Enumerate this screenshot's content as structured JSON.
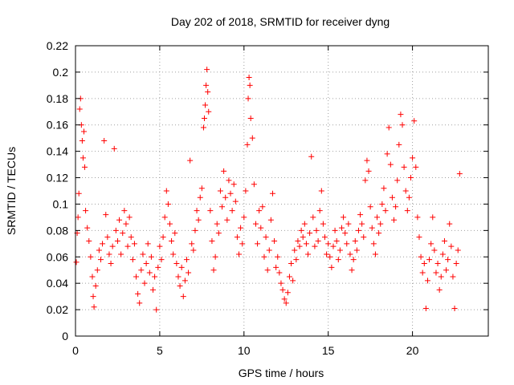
{
  "chart_data": {
    "type": "scatter",
    "title": "Day 202 of 2018, SRMTID for receiver dyng",
    "xlabel": "GPS time / hours",
    "ylabel": "SRMTID / TECUs",
    "xlim": [
      0,
      24.5
    ],
    "ylim": [
      0,
      0.22
    ],
    "xticks": [
      0,
      5,
      10,
      15,
      20
    ],
    "xtick_labels": [
      "0",
      "5",
      "10",
      "15",
      "20"
    ],
    "yticks": [
      0,
      0.02,
      0.04,
      0.06,
      0.08,
      0.1,
      0.12,
      0.14,
      0.16,
      0.18,
      0.2,
      0.22
    ],
    "ytick_labels": [
      "0",
      "0.02",
      "0.04",
      "0.06",
      "0.08",
      "0.1",
      "0.12",
      "0.14",
      "0.16",
      "0.18",
      "0.2",
      "0.22"
    ],
    "grid": true,
    "marker": "+",
    "color": "#ff0000",
    "series": [
      {
        "name": "SRMTID",
        "points": [
          [
            0.05,
            0.056
          ],
          [
            0.1,
            0.078
          ],
          [
            0.15,
            0.09
          ],
          [
            0.2,
            0.108
          ],
          [
            0.25,
            0.172
          ],
          [
            0.3,
            0.18
          ],
          [
            0.35,
            0.16
          ],
          [
            0.4,
            0.148
          ],
          [
            0.45,
            0.135
          ],
          [
            0.5,
            0.155
          ],
          [
            0.55,
            0.128
          ],
          [
            0.6,
            0.095
          ],
          [
            0.7,
            0.082
          ],
          [
            0.8,
            0.072
          ],
          [
            0.9,
            0.06
          ],
          [
            1.0,
            0.045
          ],
          [
            1.05,
            0.03
          ],
          [
            1.1,
            0.022
          ],
          [
            1.2,
            0.038
          ],
          [
            1.3,
            0.05
          ],
          [
            1.4,
            0.065
          ],
          [
            1.5,
            0.058
          ],
          [
            1.6,
            0.07
          ],
          [
            1.7,
            0.148
          ],
          [
            1.8,
            0.092
          ],
          [
            1.9,
            0.075
          ],
          [
            2.0,
            0.062
          ],
          [
            2.1,
            0.055
          ],
          [
            2.2,
            0.068
          ],
          [
            2.3,
            0.142
          ],
          [
            2.4,
            0.08
          ],
          [
            2.5,
            0.072
          ],
          [
            2.6,
            0.088
          ],
          [
            2.7,
            0.062
          ],
          [
            2.8,
            0.078
          ],
          [
            2.9,
            0.095
          ],
          [
            3.0,
            0.085
          ],
          [
            3.1,
            0.068
          ],
          [
            3.2,
            0.09
          ],
          [
            3.3,
            0.075
          ],
          [
            3.4,
            0.058
          ],
          [
            3.5,
            0.07
          ],
          [
            3.6,
            0.045
          ],
          [
            3.7,
            0.032
          ],
          [
            3.8,
            0.025
          ],
          [
            3.9,
            0.05
          ],
          [
            4.0,
            0.062
          ],
          [
            4.1,
            0.04
          ],
          [
            4.2,
            0.055
          ],
          [
            4.3,
            0.07
          ],
          [
            4.4,
            0.048
          ],
          [
            4.5,
            0.06
          ],
          [
            4.6,
            0.035
          ],
          [
            4.7,
            0.045
          ],
          [
            4.8,
            0.02
          ],
          [
            4.9,
            0.052
          ],
          [
            5.0,
            0.068
          ],
          [
            5.1,
            0.058
          ],
          [
            5.2,
            0.075
          ],
          [
            5.3,
            0.09
          ],
          [
            5.4,
            0.11
          ],
          [
            5.5,
            0.1
          ],
          [
            5.6,
            0.085
          ],
          [
            5.7,
            0.072
          ],
          [
            5.8,
            0.062
          ],
          [
            5.9,
            0.078
          ],
          [
            6.0,
            0.055
          ],
          [
            6.1,
            0.045
          ],
          [
            6.2,
            0.038
          ],
          [
            6.3,
            0.052
          ],
          [
            6.4,
            0.03
          ],
          [
            6.5,
            0.042
          ],
          [
            6.6,
            0.058
          ],
          [
            6.7,
            0.048
          ],
          [
            6.8,
            0.133
          ],
          [
            6.9,
            0.07
          ],
          [
            7.0,
            0.065
          ],
          [
            7.1,
            0.08
          ],
          [
            7.2,
            0.095
          ],
          [
            7.3,
            0.088
          ],
          [
            7.4,
            0.105
          ],
          [
            7.5,
            0.112
          ],
          [
            7.6,
            0.158
          ],
          [
            7.65,
            0.165
          ],
          [
            7.7,
            0.175
          ],
          [
            7.75,
            0.19
          ],
          [
            7.8,
            0.202
          ],
          [
            7.85,
            0.185
          ],
          [
            7.9,
            0.17
          ],
          [
            8.0,
            0.095
          ],
          [
            8.1,
            0.072
          ],
          [
            8.2,
            0.05
          ],
          [
            8.3,
            0.06
          ],
          [
            8.4,
            0.085
          ],
          [
            8.5,
            0.078
          ],
          [
            8.6,
            0.11
          ],
          [
            8.7,
            0.098
          ],
          [
            8.8,
            0.125
          ],
          [
            8.9,
            0.105
          ],
          [
            9.0,
            0.088
          ],
          [
            9.1,
            0.118
          ],
          [
            9.2,
            0.108
          ],
          [
            9.3,
            0.095
          ],
          [
            9.4,
            0.115
          ],
          [
            9.5,
            0.102
          ],
          [
            9.6,
            0.075
          ],
          [
            9.7,
            0.062
          ],
          [
            9.8,
            0.082
          ],
          [
            9.9,
            0.07
          ],
          [
            10.0,
            0.09
          ],
          [
            10.1,
            0.11
          ],
          [
            10.2,
            0.145
          ],
          [
            10.25,
            0.18
          ],
          [
            10.3,
            0.196
          ],
          [
            10.35,
            0.19
          ],
          [
            10.4,
            0.165
          ],
          [
            10.5,
            0.15
          ],
          [
            10.6,
            0.115
          ],
          [
            10.7,
            0.085
          ],
          [
            10.8,
            0.07
          ],
          [
            10.9,
            0.095
          ],
          [
            11.0,
            0.082
          ],
          [
            11.1,
            0.098
          ],
          [
            11.2,
            0.06
          ],
          [
            11.3,
            0.075
          ],
          [
            11.4,
            0.05
          ],
          [
            11.5,
            0.065
          ],
          [
            11.6,
            0.088
          ],
          [
            11.7,
            0.108
          ],
          [
            11.8,
            0.072
          ],
          [
            11.9,
            0.052
          ],
          [
            12.0,
            0.06
          ],
          [
            12.1,
            0.048
          ],
          [
            12.2,
            0.04
          ],
          [
            12.3,
            0.035
          ],
          [
            12.4,
            0.028
          ],
          [
            12.5,
            0.025
          ],
          [
            12.6,
            0.033
          ],
          [
            12.7,
            0.045
          ],
          [
            12.8,
            0.055
          ],
          [
            12.9,
            0.042
          ],
          [
            13.0,
            0.065
          ],
          [
            13.1,
            0.058
          ],
          [
            13.2,
            0.072
          ],
          [
            13.3,
            0.068
          ],
          [
            13.4,
            0.08
          ],
          [
            13.5,
            0.075
          ],
          [
            13.6,
            0.085
          ],
          [
            13.7,
            0.07
          ],
          [
            13.8,
            0.062
          ],
          [
            13.9,
            0.078
          ],
          [
            14.0,
            0.136
          ],
          [
            14.1,
            0.09
          ],
          [
            14.2,
            0.068
          ],
          [
            14.3,
            0.08
          ],
          [
            14.4,
            0.072
          ],
          [
            14.5,
            0.095
          ],
          [
            14.6,
            0.11
          ],
          [
            14.7,
            0.085
          ],
          [
            14.8,
            0.075
          ],
          [
            14.9,
            0.062
          ],
          [
            15.0,
            0.07
          ],
          [
            15.1,
            0.06
          ],
          [
            15.2,
            0.052
          ],
          [
            15.3,
            0.068
          ],
          [
            15.4,
            0.08
          ],
          [
            15.5,
            0.072
          ],
          [
            15.6,
            0.058
          ],
          [
            15.7,
            0.065
          ],
          [
            15.8,
            0.082
          ],
          [
            15.9,
            0.09
          ],
          [
            16.0,
            0.078
          ],
          [
            16.1,
            0.07
          ],
          [
            16.2,
            0.085
          ],
          [
            16.3,
            0.062
          ],
          [
            16.4,
            0.05
          ],
          [
            16.5,
            0.058
          ],
          [
            16.6,
            0.072
          ],
          [
            16.7,
            0.065
          ],
          [
            16.8,
            0.08
          ],
          [
            16.9,
            0.092
          ],
          [
            17.0,
            0.085
          ],
          [
            17.1,
            0.075
          ],
          [
            17.2,
            0.118
          ],
          [
            17.3,
            0.133
          ],
          [
            17.4,
            0.125
          ],
          [
            17.5,
            0.098
          ],
          [
            17.6,
            0.082
          ],
          [
            17.7,
            0.07
          ],
          [
            17.8,
            0.062
          ],
          [
            17.9,
            0.09
          ],
          [
            18.0,
            0.078
          ],
          [
            18.1,
            0.085
          ],
          [
            18.2,
            0.1
          ],
          [
            18.3,
            0.112
          ],
          [
            18.4,
            0.095
          ],
          [
            18.5,
            0.138
          ],
          [
            18.6,
            0.158
          ],
          [
            18.7,
            0.13
          ],
          [
            18.8,
            0.105
          ],
          [
            18.9,
            0.088
          ],
          [
            19.0,
            0.098
          ],
          [
            19.1,
            0.118
          ],
          [
            19.2,
            0.145
          ],
          [
            19.3,
            0.168
          ],
          [
            19.4,
            0.16
          ],
          [
            19.5,
            0.128
          ],
          [
            19.6,
            0.11
          ],
          [
            19.7,
            0.095
          ],
          [
            19.8,
            0.105
          ],
          [
            19.9,
            0.12
          ],
          [
            20.0,
            0.135
          ],
          [
            20.1,
            0.163
          ],
          [
            20.2,
            0.128
          ],
          [
            20.3,
            0.09
          ],
          [
            20.4,
            0.075
          ],
          [
            20.5,
            0.06
          ],
          [
            20.6,
            0.048
          ],
          [
            20.7,
            0.055
          ],
          [
            20.8,
            0.021
          ],
          [
            20.9,
            0.042
          ],
          [
            21.0,
            0.058
          ],
          [
            21.1,
            0.07
          ],
          [
            21.2,
            0.09
          ],
          [
            21.3,
            0.065
          ],
          [
            21.4,
            0.048
          ],
          [
            21.5,
            0.055
          ],
          [
            21.6,
            0.035
          ],
          [
            21.7,
            0.045
          ],
          [
            21.8,
            0.062
          ],
          [
            21.9,
            0.072
          ],
          [
            22.0,
            0.05
          ],
          [
            22.1,
            0.058
          ],
          [
            22.2,
            0.085
          ],
          [
            22.3,
            0.068
          ],
          [
            22.4,
            0.045
          ],
          [
            22.5,
            0.021
          ],
          [
            22.6,
            0.055
          ],
          [
            22.7,
            0.065
          ],
          [
            22.8,
            0.123
          ]
        ]
      }
    ]
  }
}
